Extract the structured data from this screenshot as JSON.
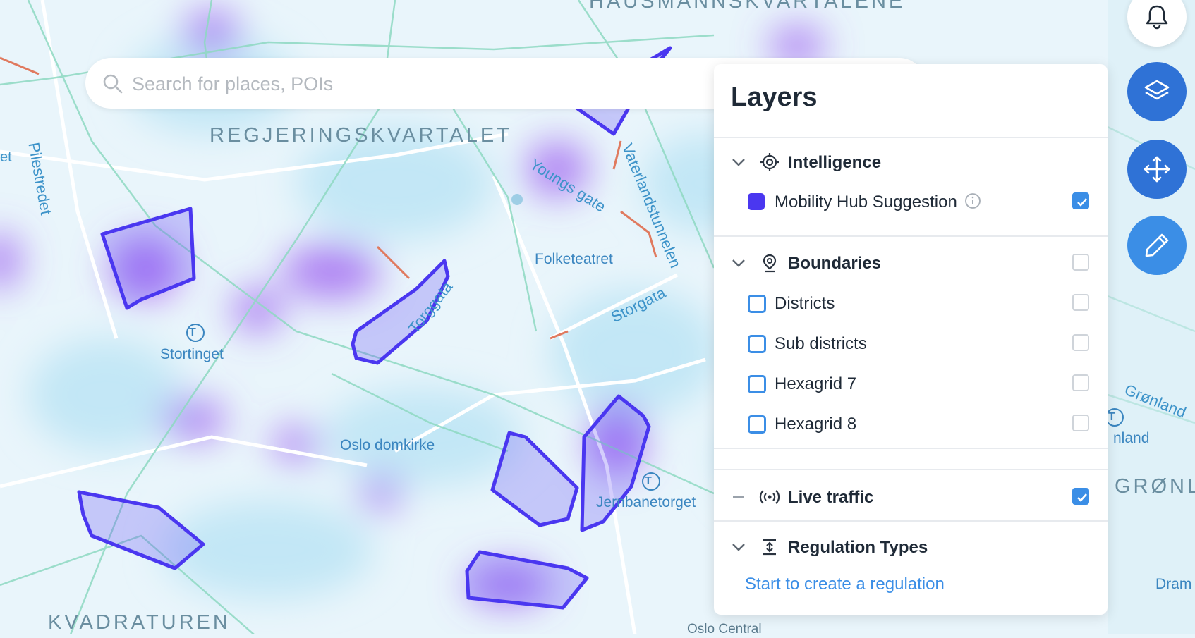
{
  "map": {
    "labels": {
      "hausmann": "HAUSMANNSKVARTALENE",
      "regjerings": "REGJERINGSKVARTALET",
      "kvadraturen": "KVADRATUREN",
      "gronland_district": "GRØNL",
      "et": "et",
      "pilestredet": "Pilestredet",
      "youngs": "Youngs gate",
      "vaterland": "Vaterlandstunnelen",
      "folketeatret": "Folketeatret",
      "storgata": "Storgata",
      "torggata": "Torggata",
      "stortinget": "Stortinget",
      "oslo_domkirke": "Oslo domkirke",
      "jernbanetorget": "Jernbanetorget",
      "gronland_street": "Grønland",
      "gronland_station": "nland",
      "oslo_central": "Oslo Central",
      "dram": "Dram",
      "metro_symbol": "T"
    }
  },
  "search": {
    "placeholder": "Search for places, POIs",
    "icon": "search-icon"
  },
  "layers_panel": {
    "title": "Layers",
    "groups": [
      {
        "label": "Intelligence",
        "icon": "cpu-icon",
        "state": "expanded",
        "items": [
          {
            "label": "Mobility Hub Suggestion",
            "swatch_color": "#4a37f0",
            "checked": true
          }
        ]
      },
      {
        "label": "Boundaries",
        "icon": "map-pin-icon",
        "state": "expanded",
        "checked": false,
        "items": [
          {
            "label": "Districts",
            "checked": false
          },
          {
            "label": "Sub districts",
            "checked": false
          },
          {
            "label": "Hexagrid 7",
            "checked": false
          },
          {
            "label": "Hexagrid 8",
            "checked": false
          }
        ]
      },
      {
        "label": "Live traffic",
        "icon": "broadcast-icon",
        "state": "toggle",
        "checked": true
      },
      {
        "label": "Regulation Types",
        "icon": "expand-vertical-icon",
        "state": "expanded",
        "link": "Start to create a regulation"
      }
    ]
  },
  "fabs": [
    {
      "name": "notifications",
      "icon": "bell-icon"
    },
    {
      "name": "layers",
      "icon": "layers-icon"
    },
    {
      "name": "move",
      "icon": "move-icon"
    },
    {
      "name": "edit",
      "icon": "pencil-icon"
    }
  ],
  "colors": {
    "accent": "#2f72d6",
    "hub_polygon": "#4a37f0",
    "heat": "#8a2be2",
    "checkbox_on": "#3b8ee6"
  }
}
